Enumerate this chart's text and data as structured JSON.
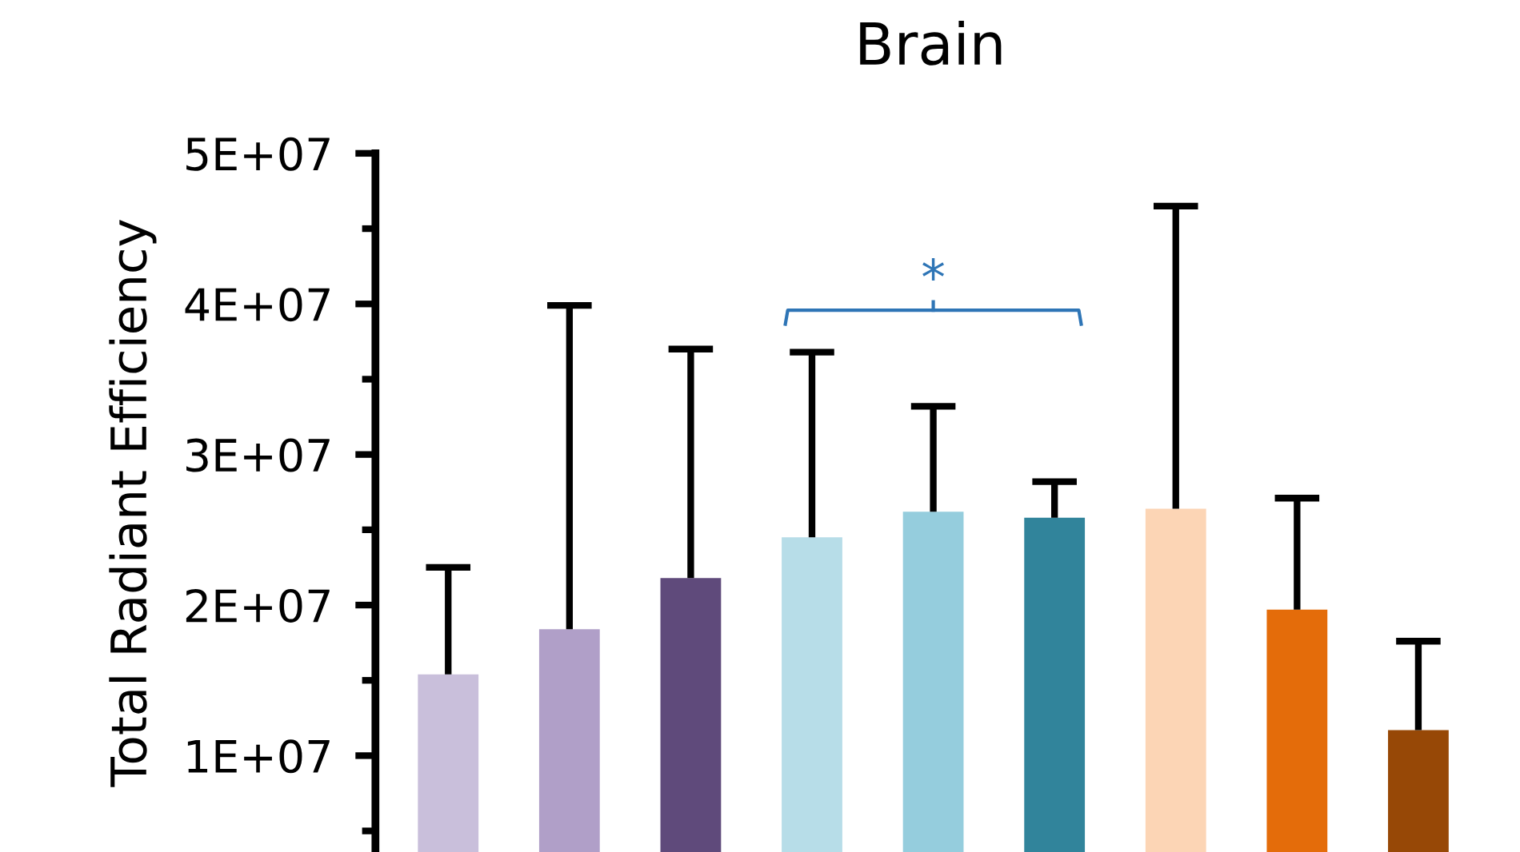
{
  "chart_data": {
    "type": "bar",
    "title": "Brain",
    "ylabel": "Total Radiant Efficiency",
    "categories": [
      null,
      null,
      null,
      null,
      null,
      null,
      null,
      null,
      null
    ],
    "values": [
      15400000,
      18400000,
      21800000,
      24500000,
      26200000,
      25800000,
      26400000,
      19700000,
      11700000
    ],
    "errors": [
      [
        15400000,
        22500000
      ],
      [
        18400000,
        39900000
      ],
      [
        21800000,
        37000000
      ],
      [
        24500000,
        36800000
      ],
      [
        26200000,
        33200000
      ],
      [
        25800000,
        28200000
      ],
      [
        26400000,
        46500000
      ],
      [
        19700000,
        27100000
      ],
      [
        11700000,
        17600000
      ]
    ],
    "colors": [
      "#c9bfdb",
      "#b09fc8",
      "#5f4a7b",
      "#b7dde8",
      "#95cddd",
      "#31849b",
      "#fcd5b5",
      "#e46c0a",
      "#974806"
    ],
    "ylim": [
      3600000,
      50000000
    ],
    "yticks": [
      {
        "value": 10000000,
        "label": "1E+07"
      },
      {
        "value": 20000000,
        "label": "2E+07"
      },
      {
        "value": 30000000,
        "label": "3E+07"
      },
      {
        "value": 40000000,
        "label": "4E+07"
      },
      {
        "value": 50000000,
        "label": "5E+07"
      }
    ],
    "annotations": [
      "*"
    ],
    "grid": false,
    "legend": false
  }
}
